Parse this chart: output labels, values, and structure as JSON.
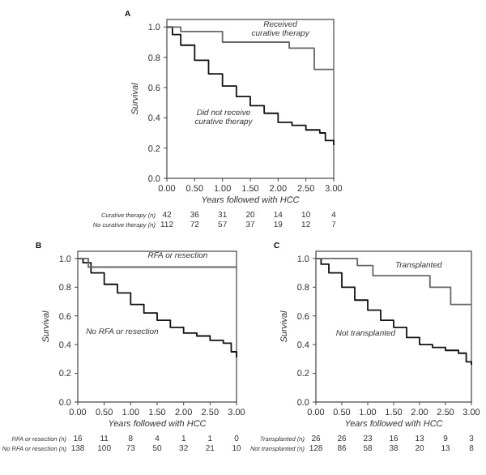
{
  "chart_data": [
    {
      "type": "step",
      "title": "A",
      "xlabel": "Years followed with HCC",
      "ylabel": "Survival",
      "xlim": [
        0,
        3
      ],
      "ylim": [
        0,
        1.05
      ],
      "xticks": [
        {
          "value": 0,
          "label": "0.00"
        },
        {
          "value": 0.5,
          "label": "0.50"
        },
        {
          "value": 1,
          "label": "1.00"
        },
        {
          "value": 1.5,
          "label": "1.50"
        },
        {
          "value": 2,
          "label": "2.00"
        },
        {
          "value": 2.5,
          "label": "2.50"
        },
        {
          "value": 3,
          "label": "3.00"
        }
      ],
      "yticks": [
        {
          "value": 0,
          "label": "0.0"
        },
        {
          "value": 0.2,
          "label": "0.2"
        },
        {
          "value": 0.4,
          "label": "0.4"
        },
        {
          "value": 0.6,
          "label": "0.6"
        },
        {
          "value": 0.8,
          "label": "0.8"
        },
        {
          "value": 1,
          "label": "1.0"
        }
      ],
      "series": [
        {
          "name": "Received curative therapy",
          "color": "#666666",
          "x": [
            0,
            0.25,
            1.0,
            2.2,
            2.65,
            3.0
          ],
          "values": [
            1.0,
            0.97,
            0.9,
            0.86,
            0.72,
            0.72
          ]
        },
        {
          "name": "Did not receive curative therapy",
          "color": "#111111",
          "x": [
            0,
            0.1,
            0.25,
            0.5,
            0.75,
            1.0,
            1.25,
            1.5,
            1.75,
            2.0,
            2.25,
            2.5,
            2.75,
            2.85,
            3.0
          ],
          "values": [
            1.0,
            0.95,
            0.88,
            0.78,
            0.69,
            0.61,
            0.54,
            0.48,
            0.43,
            0.37,
            0.35,
            0.32,
            0.3,
            0.25,
            0.22
          ]
        }
      ],
      "annotations": [
        "Curative therapy (n)   42   36   31   20   14   10   4",
        "No curative therapy (n)   112   72   57   37   19   12   7"
      ]
    },
    {
      "type": "step",
      "title": "B",
      "xlabel": "Years followed with HCC",
      "ylabel": "Survival",
      "xlim": [
        0,
        3
      ],
      "ylim": [
        0,
        1.05
      ],
      "xticks": [
        {
          "value": 0,
          "label": "0.00"
        },
        {
          "value": 0.5,
          "label": "0.50"
        },
        {
          "value": 1,
          "label": "1.00"
        },
        {
          "value": 1.5,
          "label": "1.50"
        },
        {
          "value": 2,
          "label": "2.00"
        },
        {
          "value": 2.5,
          "label": "2.50"
        },
        {
          "value": 3,
          "label": "3.00"
        }
      ],
      "yticks": [
        {
          "value": 0,
          "label": "0.0"
        },
        {
          "value": 0.2,
          "label": "0.2"
        },
        {
          "value": 0.4,
          "label": "0.4"
        },
        {
          "value": 0.6,
          "label": "0.6"
        },
        {
          "value": 0.8,
          "label": "0.8"
        },
        {
          "value": 1,
          "label": "1.0"
        }
      ],
      "series": [
        {
          "name": "RFA or resection",
          "color": "#666666",
          "x": [
            0,
            0.2,
            0.5,
            1.0,
            1.5,
            2.0,
            2.5,
            3.0
          ],
          "values": [
            1.0,
            0.94,
            0.94,
            0.94,
            0.94,
            0.94,
            0.94,
            0.94
          ]
        },
        {
          "name": "No RFA or resection",
          "color": "#111111",
          "x": [
            0,
            0.1,
            0.25,
            0.5,
            0.75,
            1.0,
            1.25,
            1.5,
            1.75,
            2.0,
            2.25,
            2.5,
            2.75,
            2.9,
            3.0
          ],
          "values": [
            1.0,
            0.97,
            0.9,
            0.82,
            0.76,
            0.68,
            0.62,
            0.57,
            0.52,
            0.48,
            0.46,
            0.43,
            0.41,
            0.35,
            0.31
          ]
        }
      ],
      "annotations": [
        "RFA or resection (n)   16   11   8   4   1   1   0",
        "No RFA or resection (n)   138   100   73   50   32   21   10"
      ]
    },
    {
      "type": "step",
      "title": "C",
      "xlabel": "Years followed with HCC",
      "ylabel": "Survival",
      "xlim": [
        0,
        3
      ],
      "ylim": [
        0,
        1.05
      ],
      "xticks": [
        {
          "value": 0,
          "label": "0.00"
        },
        {
          "value": 0.5,
          "label": "0.50"
        },
        {
          "value": 1,
          "label": "1.00"
        },
        {
          "value": 1.5,
          "label": "1.50"
        },
        {
          "value": 2,
          "label": "2.00"
        },
        {
          "value": 2.5,
          "label": "2.50"
        },
        {
          "value": 3,
          "label": "3.00"
        }
      ],
      "yticks": [
        {
          "value": 0,
          "label": "0.0"
        },
        {
          "value": 0.2,
          "label": "0.2"
        },
        {
          "value": 0.4,
          "label": "0.4"
        },
        {
          "value": 0.6,
          "label": "0.6"
        },
        {
          "value": 0.8,
          "label": "0.8"
        },
        {
          "value": 1,
          "label": "1.0"
        }
      ],
      "series": [
        {
          "name": "Transplanted",
          "color": "#666666",
          "x": [
            0,
            0.8,
            1.1,
            2.2,
            2.6,
            3.0
          ],
          "values": [
            1.0,
            0.95,
            0.88,
            0.8,
            0.68,
            0.68
          ]
        },
        {
          "name": "Not transplanted",
          "color": "#111111",
          "x": [
            0,
            0.1,
            0.25,
            0.5,
            0.75,
            1.0,
            1.25,
            1.5,
            1.75,
            2.0,
            2.25,
            2.5,
            2.75,
            2.9,
            3.0
          ],
          "values": [
            1.0,
            0.96,
            0.9,
            0.8,
            0.71,
            0.64,
            0.57,
            0.52,
            0.45,
            0.4,
            0.38,
            0.36,
            0.34,
            0.28,
            0.26
          ]
        }
      ],
      "annotations": [
        "Transplanted (n)   26   26   23   16   13   9   3",
        "Not transplanted (n)   128   86   58   38   20   13   8"
      ]
    }
  ]
}
